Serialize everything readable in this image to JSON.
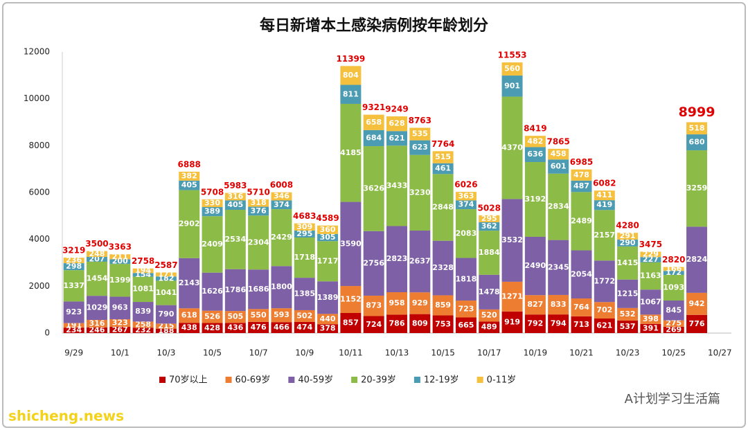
{
  "chart_data": {
    "type": "stacked_bar",
    "title": "每日新增本土感染病例按年龄划分",
    "categories": [
      "9/29",
      null,
      "10/1",
      null,
      "10/3",
      null,
      "10/5",
      null,
      "10/7",
      null,
      "10/9",
      null,
      "10/11",
      null,
      "10/13",
      null,
      "10/15",
      null,
      "10/17",
      null,
      "10/19",
      null,
      "10/21",
      null,
      "10/23",
      null,
      "10/25",
      null,
      "10/27"
    ],
    "series": [
      {
        "name": "70岁以上",
        "color": "#c00000",
        "values": [
          234,
          246,
          267,
          232,
          188,
          438,
          428,
          436,
          476,
          466,
          474,
          378,
          857,
          724,
          786,
          809,
          753,
          665,
          489,
          919,
          792,
          794,
          713,
          621,
          537,
          391,
          269,
          776,
          null
        ]
      },
      {
        "name": "60-69岁",
        "color": "#ed7d31",
        "values": [
          191,
          316,
          323,
          258,
          215,
          618,
          526,
          505,
          550,
          593,
          502,
          440,
          1152,
          873,
          958,
          929,
          859,
          723,
          520,
          1271,
          827,
          833,
          764,
          702,
          532,
          398,
          275,
          942,
          null
        ]
      },
      {
        "name": "40-59岁",
        "color": "#7e60a6",
        "values": [
          923,
          1029,
          963,
          839,
          790,
          2143,
          1626,
          1786,
          1686,
          1800,
          1385,
          1389,
          3590,
          2756,
          2823,
          2637,
          2328,
          1818,
          1478,
          3532,
          2490,
          2345,
          2054,
          1772,
          1215,
          1067,
          845,
          2824,
          null
        ]
      },
      {
        "name": "20-39岁",
        "color": "#8dbb47",
        "values": [
          1337,
          1454,
          1399,
          1081,
          1041,
          2902,
          2409,
          2534,
          2304,
          2429,
          1718,
          1717,
          4185,
          3626,
          3433,
          3230,
          2848,
          2083,
          1884,
          4370,
          3192,
          2834,
          2489,
          2157,
          1415,
          1163,
          1093,
          3259,
          null
        ]
      },
      {
        "name": "12-19岁",
        "color": "#4b9bb2",
        "values": [
          298,
          207,
          200,
          154,
          182,
          405,
          389,
          405,
          376,
          374,
          295,
          305,
          811,
          684,
          621,
          623,
          461,
          374,
          362,
          901,
          636,
          601,
          487,
          419,
          290,
          227,
          172,
          680,
          null
        ]
      },
      {
        "name": "0-11岁",
        "color": "#f4c03e",
        "values": [
          236,
          248,
          211,
          194,
          171,
          382,
          330,
          316,
          318,
          346,
          309,
          360,
          804,
          658,
          628,
          535,
          515,
          363,
          295,
          560,
          482,
          458,
          478,
          411,
          291,
          229,
          166,
          518,
          null
        ]
      }
    ],
    "totals": [
      3219,
      3500,
      3363,
      2758,
      2587,
      6888,
      5708,
      5983,
      5710,
      6008,
      4683,
      4589,
      11399,
      9321,
      9249,
      8763,
      7764,
      6026,
      5028,
      11553,
      8419,
      7865,
      6985,
      6082,
      4280,
      3475,
      2820,
      8999,
      null
    ],
    "ylim": [
      0,
      12000
    ],
    "yticks": [
      0,
      2000,
      4000,
      6000,
      8000,
      10000,
      12000
    ],
    "grid": false
  },
  "watermarks": [
    "A计划学习生活篇",
    "shicheng.news"
  ]
}
